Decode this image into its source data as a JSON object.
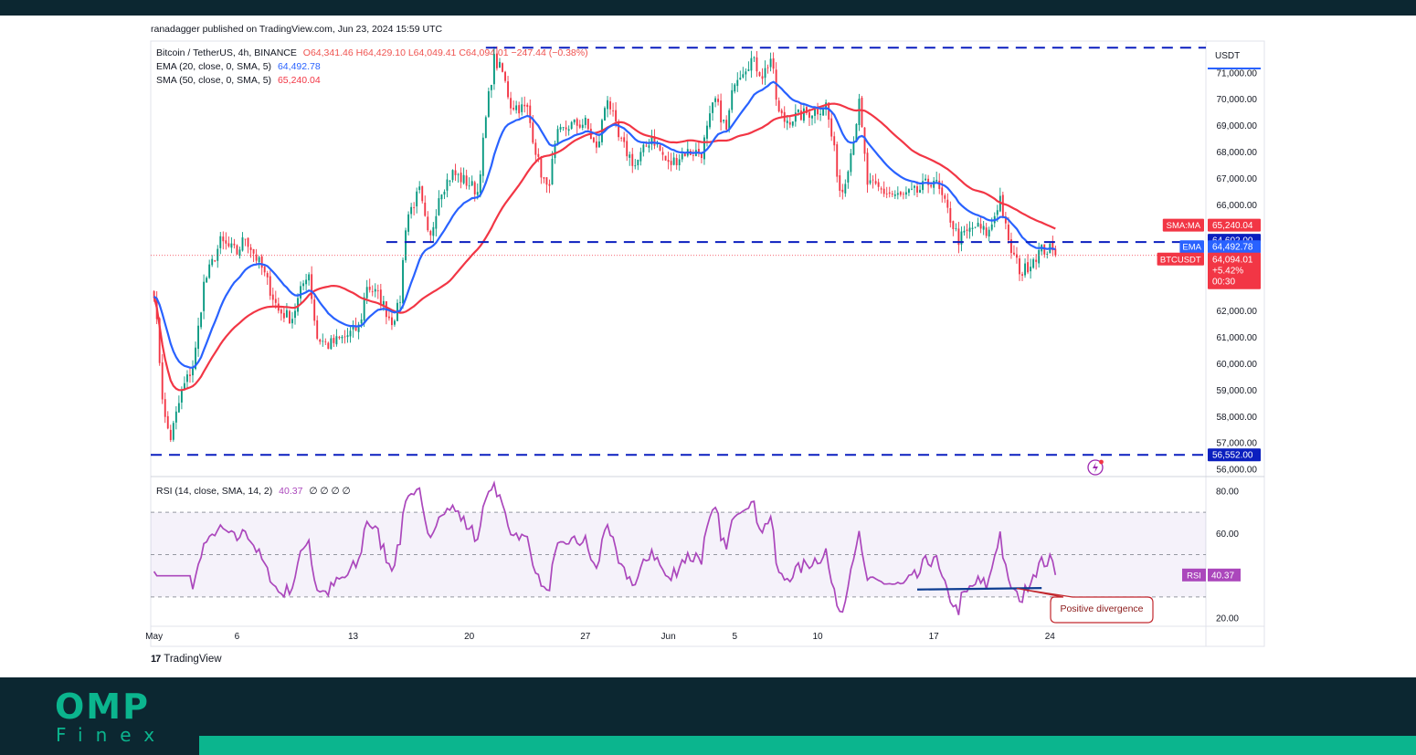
{
  "publisher": "ranadagger published on TradingView.com, Jun 23, 2024 15:59 UTC",
  "brand": "TradingView",
  "footer": {
    "logo_main": "OMP",
    "logo_sub": "Finex"
  },
  "colors": {
    "ema": "#2962ff",
    "sma": "#f23645",
    "rsi": "#ab47bc",
    "levels": "#0b1fbf",
    "up": "#089981",
    "down": "#f23645",
    "divergence": "#0d3d91",
    "footer": "#0c2731",
    "accent": "#0bb58e"
  },
  "legend": {
    "symbol": "Bitcoin / TetherUS, 4h, BINANCE",
    "open": "O64,341.46",
    "high": "H64,429.10",
    "low": "L64,049.41",
    "close": "C64,094.01",
    "change": "−247.44 (−0.38%)",
    "ema_label": "EMA (20, close, 0, SMA, 5)",
    "ema_value": "64,492.78",
    "sma_label": "SMA (50, close, 0, SMA, 5)",
    "sma_value": "65,240.04",
    "rsi_label": "RSI (14, close, SMA, 14, 2)",
    "rsi_value": "40.37",
    "rsi_extra": "∅ ∅ ∅ ∅"
  },
  "chart_data": [
    {
      "type": "candlestick",
      "currency": "USDT",
      "ylim": [
        55800,
        72200
      ],
      "yticks": [
        {
          "v": 56000,
          "label": "56,000.00"
        },
        {
          "v": 57000,
          "label": "57,000.00"
        },
        {
          "v": 58000,
          "label": "58,000.00"
        },
        {
          "v": 59000,
          "label": "59,000.00"
        },
        {
          "v": 60000,
          "label": "60,000.00"
        },
        {
          "v": 61000,
          "label": "61,000.00"
        },
        {
          "v": 62000,
          "label": "62,000.00"
        },
        {
          "v": 66000,
          "label": "66,000.00"
        },
        {
          "v": 67000,
          "label": "67,000.00"
        },
        {
          "v": 68000,
          "label": "68,000.00"
        },
        {
          "v": 69000,
          "label": "69,000.00"
        },
        {
          "v": 70000,
          "label": "70,000.00"
        },
        {
          "v": 71000,
          "label": "71,000.00"
        }
      ],
      "xticks": [
        {
          "d": 0,
          "label": "May"
        },
        {
          "d": 5,
          "label": "6"
        },
        {
          "d": 12,
          "label": "13"
        },
        {
          "d": 19,
          "label": "20"
        },
        {
          "d": 26,
          "label": "27"
        },
        {
          "d": 31,
          "label": "Jun"
        },
        {
          "d": 35,
          "label": "5"
        },
        {
          "d": 40,
          "label": "10"
        },
        {
          "d": 47,
          "label": "17"
        },
        {
          "d": 54,
          "label": "24"
        }
      ],
      "xlim_days": [
        -0.2,
        63.4
      ],
      "price_anchors": [
        [
          0,
          62800
        ],
        [
          0.6,
          58000
        ],
        [
          1.0,
          57200
        ],
        [
          1.7,
          59000
        ],
        [
          2.4,
          60000
        ],
        [
          3.0,
          63000
        ],
        [
          4.0,
          64600
        ],
        [
          5.0,
          64200
        ],
        [
          5.5,
          64800
        ],
        [
          6.5,
          63600
        ],
        [
          7.5,
          62000
        ],
        [
          8.3,
          61700
        ],
        [
          9.3,
          63600
        ],
        [
          9.8,
          61000
        ],
        [
          10.5,
          60700
        ],
        [
          11.5,
          61000
        ],
        [
          12.4,
          61400
        ],
        [
          12.8,
          63000
        ],
        [
          13.6,
          62500
        ],
        [
          14.3,
          61600
        ],
        [
          14.8,
          62200
        ],
        [
          15.2,
          65500
        ],
        [
          16.0,
          66500
        ],
        [
          16.6,
          64500
        ],
        [
          17.2,
          66500
        ],
        [
          18.0,
          67200
        ],
        [
          19.0,
          66800
        ],
        [
          19.5,
          66500
        ],
        [
          20.1,
          69800
        ],
        [
          20.5,
          71500
        ],
        [
          21.0,
          71000
        ],
        [
          21.5,
          69800
        ],
        [
          22.5,
          69600
        ],
        [
          23.2,
          67500
        ],
        [
          23.7,
          66500
        ],
        [
          24.3,
          68600
        ],
        [
          25.0,
          69000
        ],
        [
          26.0,
          69100
        ],
        [
          26.7,
          68000
        ],
        [
          27.3,
          70200
        ],
        [
          28.0,
          68500
        ],
        [
          29.0,
          67500
        ],
        [
          30.0,
          68600
        ],
        [
          31.0,
          67500
        ],
        [
          32.0,
          68000
        ],
        [
          33.0,
          68000
        ],
        [
          33.8,
          70000
        ],
        [
          34.5,
          68800
        ],
        [
          35.0,
          70800
        ],
        [
          36.0,
          71500
        ],
        [
          36.7,
          70900
        ],
        [
          37.2,
          71600
        ],
        [
          37.6,
          69500
        ],
        [
          38.0,
          69200
        ],
        [
          39.0,
          69400
        ],
        [
          40.0,
          69600
        ],
        [
          40.5,
          69800
        ],
        [
          41.0,
          68000
        ],
        [
          41.4,
          66300
        ],
        [
          42.0,
          68000
        ],
        [
          42.5,
          69800
        ],
        [
          43.0,
          66800
        ],
        [
          44.0,
          66500
        ],
        [
          45.0,
          66300
        ],
        [
          46.0,
          66500
        ],
        [
          47.0,
          67000
        ],
        [
          47.8,
          65800
        ],
        [
          48.5,
          64700
        ],
        [
          49.5,
          65200
        ],
        [
          50.3,
          64900
        ],
        [
          51.0,
          66300
        ],
        [
          51.5,
          64500
        ],
        [
          52.3,
          63400
        ],
        [
          53.0,
          64000
        ],
        [
          53.5,
          64300
        ],
        [
          54.0,
          64300
        ],
        [
          54.3,
          64094
        ]
      ],
      "levels": [
        {
          "name": "resistance-top",
          "value": 71950
        },
        {
          "name": "resistance-mid",
          "value": 64602
        },
        {
          "name": "support",
          "value": 56552
        }
      ],
      "last_price": 64094.01,
      "price_labels": [
        {
          "name": "sma-label",
          "tag": "SMA:MA",
          "value": 65240.04,
          "text": "65,240.04"
        },
        {
          "name": "level-label",
          "tag": "",
          "value": 64602.0,
          "text": "64,602.00"
        },
        {
          "name": "ema-label",
          "tag": "EMA",
          "value": 64492.78,
          "text": "64,492.78"
        },
        {
          "name": "price-label",
          "tag": "BTCUSDT",
          "value": 64094.01,
          "text": "64,094.01",
          "pct": "+5.42%",
          "countdown": "00:30"
        },
        {
          "name": "support-label",
          "tag": "",
          "value": 56552.0,
          "text": "56,552.00"
        }
      ]
    },
    {
      "type": "line",
      "name": "RSI",
      "ylim": [
        17,
        86
      ],
      "yticks": [
        {
          "v": 20,
          "label": "20.00"
        },
        {
          "v": 40,
          "label": "40.00"
        },
        {
          "v": 60,
          "label": "60.00"
        },
        {
          "v": 80,
          "label": "80.00"
        }
      ],
      "bands": [
        30,
        50,
        70
      ],
      "value": 40.37,
      "divergence_label": "Positive divergence",
      "divergence_line": [
        [
          46.0,
          33.5
        ],
        [
          53.5,
          34.2
        ]
      ]
    }
  ]
}
